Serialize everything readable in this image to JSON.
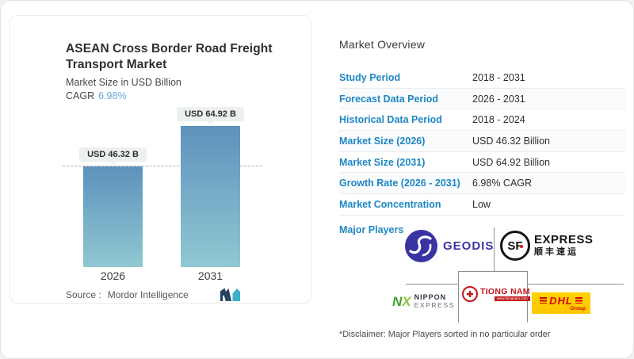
{
  "card": {
    "title_line1": "ASEAN Cross Border Road Freight",
    "title_line2": "Transport Market",
    "subtitle": "Market Size in USD Billion",
    "cagr_label": "CAGR",
    "cagr_value": "6.98%",
    "source_label": "Source :",
    "source_value": "Mordor Intelligence"
  },
  "chart_data": {
    "type": "bar",
    "title": "ASEAN Cross Border Road Freight Transport Market",
    "ylabel": "Market Size in USD Billion",
    "categories": [
      "2026",
      "2031"
    ],
    "values": [
      46.32,
      64.92
    ],
    "bar_labels": [
      "USD 46.32 B",
      "USD 64.92 B"
    ],
    "cagr": "6.98%",
    "unit": "USD Billion",
    "reference_line_at": 46.32,
    "bar_gradient_top": "#5d92bc",
    "bar_gradient_bottom": "#90c8d2",
    "grid": false,
    "legend": false
  },
  "overview": {
    "heading": "Market Overview",
    "rows": [
      {
        "label": "Study Period",
        "value": "2018 - 2031"
      },
      {
        "label": "Forecast Data Period",
        "value": "2026 - 2031"
      },
      {
        "label": "Historical Data Period",
        "value": "2018 - 2024"
      },
      {
        "label": "Market Size (2026)",
        "value": "USD 46.32 Billion"
      },
      {
        "label": "Market Size (2031)",
        "value": "USD 64.92 Billion"
      },
      {
        "label": "Growth Rate (2026 - 2031)",
        "value": "6.98% CAGR"
      },
      {
        "label": "Market Concentration",
        "value": "Low"
      }
    ],
    "major_players_label": "Major Players",
    "major_players": [
      "GEODIS",
      "SF Express",
      "Nippon Express",
      "Tiong Nam",
      "DHL Group"
    ],
    "disclaimer": "*Disclaimer: Major Players sorted in no particular order"
  },
  "logos": {
    "geodis": {
      "text": "GEODIS",
      "color": "#3a33a3"
    },
    "sf": {
      "circle_text": "SF",
      "line1": "EXPRESS",
      "line2": "顺丰速运",
      "color": "#141414",
      "dot_color": "#e60012"
    },
    "nx": {
      "n": "N",
      "x": "X",
      "line1": "NIPPON",
      "line2": "EXPRESS",
      "green": "#3fa32c"
    },
    "tiongnam": {
      "text": "TIONG NAM",
      "sub": "www.tiongnam.com",
      "color": "#c3161c"
    },
    "dhl": {
      "text": "DHL",
      "sub": "Group",
      "bg": "#ffcc00",
      "color": "#d40511"
    }
  },
  "colors": {
    "label_blue": "#1e87c3",
    "cagr_blue": "#66abd8",
    "pill_bg": "#edf0f1",
    "separator": "#eaecee",
    "connector_gray": "#8f8f8f",
    "mi_navy": "#24425f",
    "mi_teal": "#3fb0cc"
  }
}
